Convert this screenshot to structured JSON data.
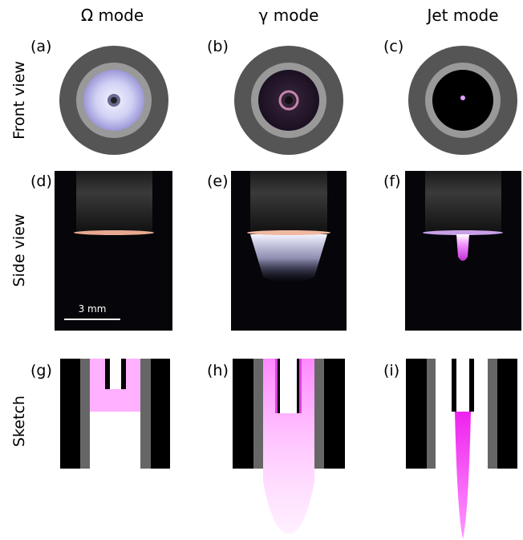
{
  "column_headers": [
    "Ω mode",
    "γ mode",
    "Jet mode"
  ],
  "row_labels": [
    "Front view",
    "Side view",
    "Sketch"
  ],
  "panel_labels": [
    "(a)",
    "(b)",
    "(c)",
    "(d)",
    "(e)",
    "(f)",
    "(g)",
    "(h)",
    "(i)"
  ],
  "scale_bar": "3 mm"
}
